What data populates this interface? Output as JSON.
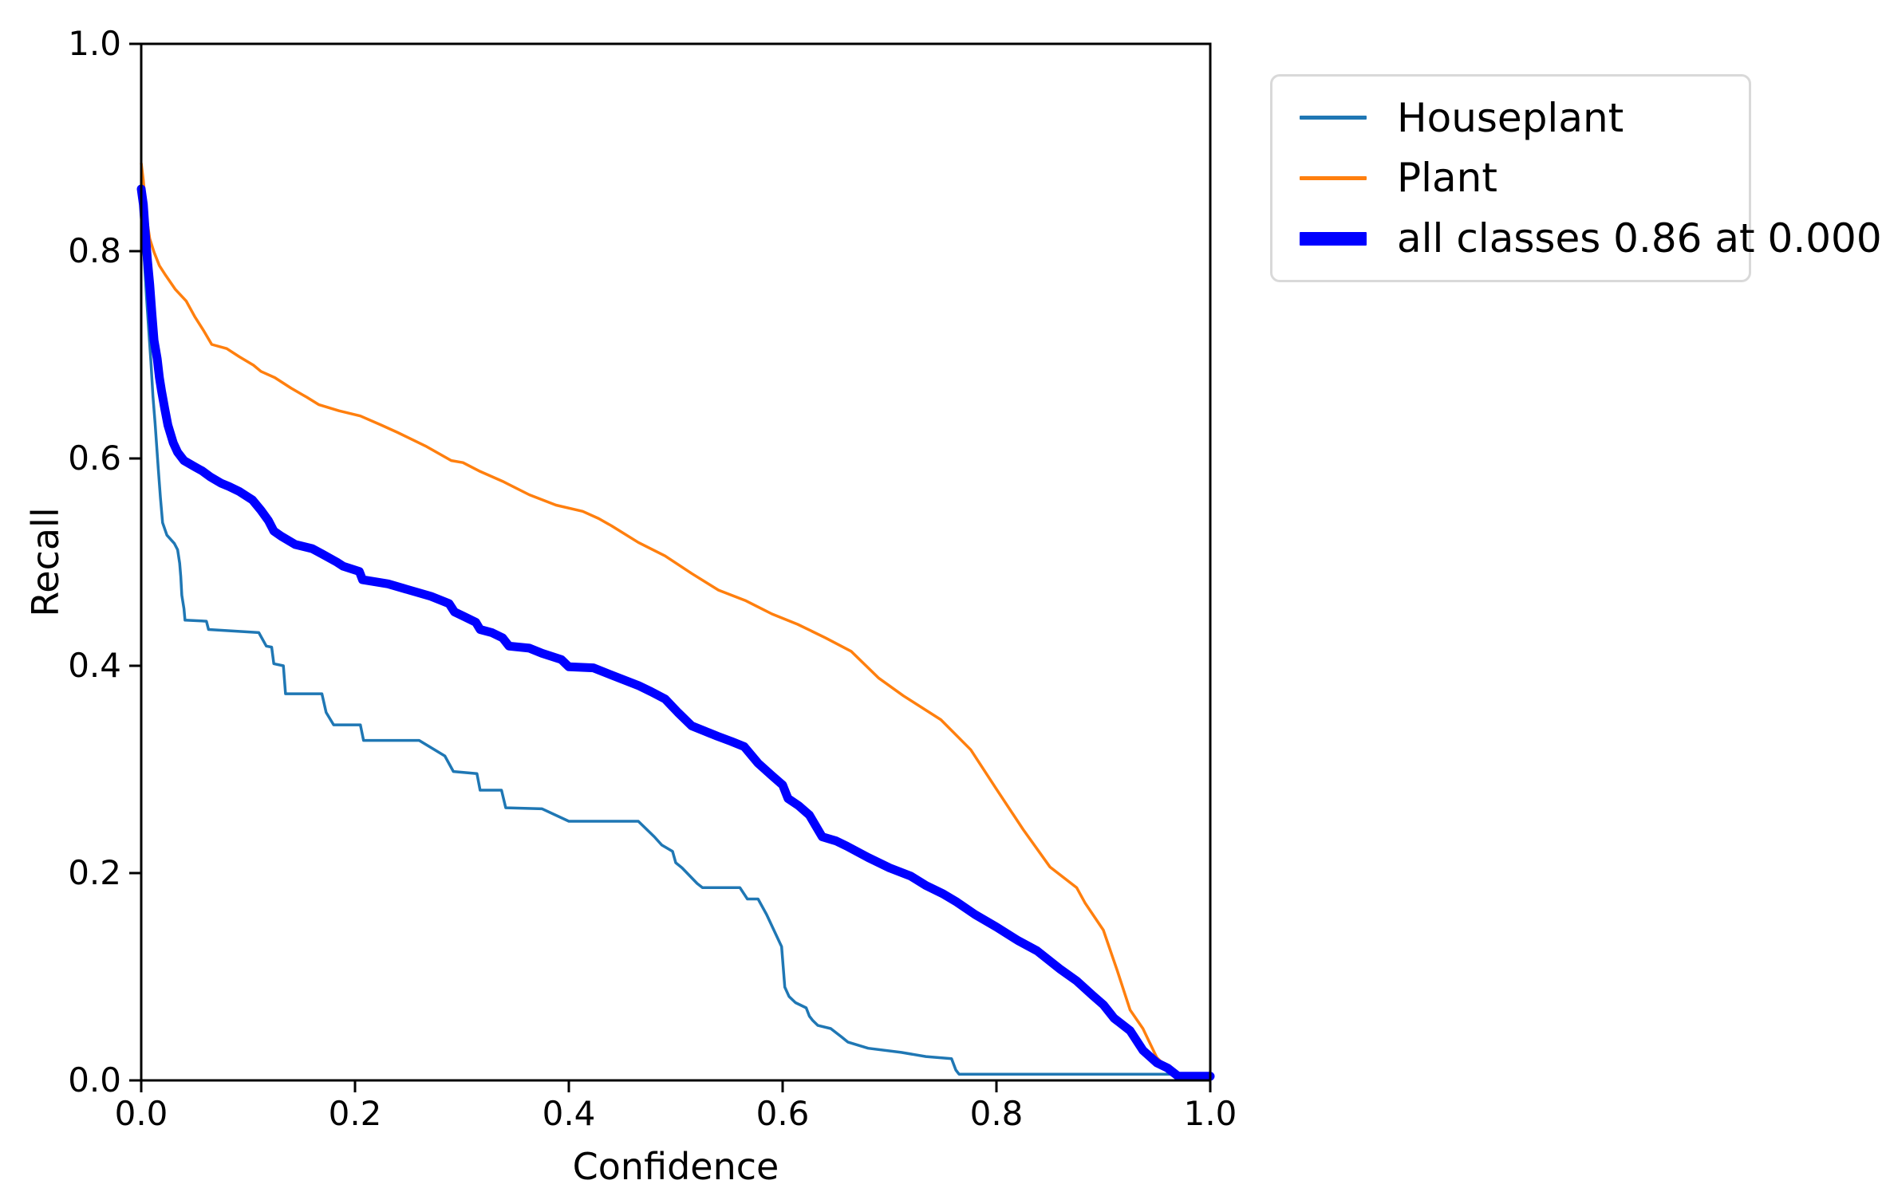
{
  "figure": {
    "background": "#ffffff",
    "plot_border_color": "#000000"
  },
  "chart_data": {
    "type": "line",
    "title": "",
    "xlabel": "Confidence",
    "ylabel": "Recall",
    "xlim": [
      0.0,
      1.0
    ],
    "ylim": [
      0.0,
      1.0
    ],
    "grid": false,
    "legend_position": "outside-top-right",
    "xticks": [
      "0.0",
      "0.2",
      "0.4",
      "0.6",
      "0.8",
      "1.0"
    ],
    "yticks": [
      "0.0",
      "0.2",
      "0.4",
      "0.6",
      "0.8",
      "1.0"
    ],
    "series": [
      {
        "name": "Houseplant",
        "color": "#1f77b4",
        "line_width": 3.5,
        "points": [
          [
            0.0,
            0.845
          ],
          [
            0.003,
            0.79
          ],
          [
            0.005,
            0.755
          ],
          [
            0.007,
            0.724
          ],
          [
            0.009,
            0.694
          ],
          [
            0.011,
            0.66
          ],
          [
            0.013,
            0.634
          ],
          [
            0.016,
            0.59
          ],
          [
            0.018,
            0.562
          ],
          [
            0.02,
            0.538
          ],
          [
            0.024,
            0.526
          ],
          [
            0.031,
            0.518
          ],
          [
            0.034,
            0.512
          ],
          [
            0.036,
            0.499
          ],
          [
            0.037,
            0.486
          ],
          [
            0.038,
            0.468
          ],
          [
            0.04,
            0.455
          ],
          [
            0.041,
            0.444
          ],
          [
            0.061,
            0.443
          ],
          [
            0.063,
            0.435
          ],
          [
            0.11,
            0.432
          ],
          [
            0.117,
            0.419
          ],
          [
            0.122,
            0.418
          ],
          [
            0.124,
            0.402
          ],
          [
            0.133,
            0.4
          ],
          [
            0.135,
            0.373
          ],
          [
            0.169,
            0.373
          ],
          [
            0.173,
            0.355
          ],
          [
            0.18,
            0.343
          ],
          [
            0.205,
            0.343
          ],
          [
            0.208,
            0.328
          ],
          [
            0.26,
            0.328
          ],
          [
            0.284,
            0.313
          ],
          [
            0.292,
            0.298
          ],
          [
            0.314,
            0.296
          ],
          [
            0.317,
            0.28
          ],
          [
            0.337,
            0.28
          ],
          [
            0.341,
            0.263
          ],
          [
            0.375,
            0.262
          ],
          [
            0.4,
            0.25
          ],
          [
            0.465,
            0.25
          ],
          [
            0.48,
            0.235
          ],
          [
            0.487,
            0.227
          ],
          [
            0.497,
            0.221
          ],
          [
            0.5,
            0.21
          ],
          [
            0.506,
            0.205
          ],
          [
            0.52,
            0.19
          ],
          [
            0.525,
            0.186
          ],
          [
            0.56,
            0.186
          ],
          [
            0.567,
            0.175
          ],
          [
            0.577,
            0.175
          ],
          [
            0.585,
            0.16
          ],
          [
            0.599,
            0.129
          ],
          [
            0.602,
            0.09
          ],
          [
            0.606,
            0.081
          ],
          [
            0.612,
            0.075
          ],
          [
            0.622,
            0.07
          ],
          [
            0.625,
            0.062
          ],
          [
            0.628,
            0.058
          ],
          [
            0.633,
            0.053
          ],
          [
            0.645,
            0.05
          ],
          [
            0.655,
            0.042
          ],
          [
            0.661,
            0.037
          ],
          [
            0.68,
            0.031
          ],
          [
            0.711,
            0.027
          ],
          [
            0.734,
            0.023
          ],
          [
            0.758,
            0.021
          ],
          [
            0.762,
            0.01
          ],
          [
            0.765,
            0.006
          ],
          [
            1.0,
            0.006
          ]
        ]
      },
      {
        "name": "Plant",
        "color": "#ff7f0e",
        "line_width": 3.5,
        "points": [
          [
            0.0,
            0.885
          ],
          [
            0.002,
            0.868
          ],
          [
            0.004,
            0.843
          ],
          [
            0.006,
            0.826
          ],
          [
            0.008,
            0.812
          ],
          [
            0.012,
            0.799
          ],
          [
            0.017,
            0.786
          ],
          [
            0.022,
            0.778
          ],
          [
            0.032,
            0.763
          ],
          [
            0.042,
            0.752
          ],
          [
            0.05,
            0.737
          ],
          [
            0.058,
            0.724
          ],
          [
            0.066,
            0.71
          ],
          [
            0.08,
            0.706
          ],
          [
            0.092,
            0.698
          ],
          [
            0.105,
            0.69
          ],
          [
            0.112,
            0.684
          ],
          [
            0.125,
            0.678
          ],
          [
            0.14,
            0.668
          ],
          [
            0.155,
            0.659
          ],
          [
            0.166,
            0.652
          ],
          [
            0.185,
            0.646
          ],
          [
            0.205,
            0.641
          ],
          [
            0.225,
            0.632
          ],
          [
            0.24,
            0.625
          ],
          [
            0.266,
            0.612
          ],
          [
            0.29,
            0.598
          ],
          [
            0.301,
            0.596
          ],
          [
            0.316,
            0.588
          ],
          [
            0.338,
            0.578
          ],
          [
            0.363,
            0.565
          ],
          [
            0.388,
            0.555
          ],
          [
            0.413,
            0.549
          ],
          [
            0.428,
            0.542
          ],
          [
            0.44,
            0.535
          ],
          [
            0.465,
            0.519
          ],
          [
            0.49,
            0.506
          ],
          [
            0.515,
            0.489
          ],
          [
            0.54,
            0.473
          ],
          [
            0.565,
            0.463
          ],
          [
            0.59,
            0.45
          ],
          [
            0.614,
            0.44
          ],
          [
            0.64,
            0.427
          ],
          [
            0.664,
            0.414
          ],
          [
            0.69,
            0.388
          ],
          [
            0.713,
            0.371
          ],
          [
            0.748,
            0.348
          ],
          [
            0.776,
            0.319
          ],
          [
            0.8,
            0.281
          ],
          [
            0.825,
            0.242
          ],
          [
            0.85,
            0.206
          ],
          [
            0.875,
            0.186
          ],
          [
            0.883,
            0.171
          ],
          [
            0.9,
            0.145
          ],
          [
            0.913,
            0.106
          ],
          [
            0.925,
            0.068
          ],
          [
            0.937,
            0.05
          ],
          [
            0.95,
            0.022
          ],
          [
            0.96,
            0.012
          ],
          [
            0.968,
            0.004
          ]
        ]
      },
      {
        "name": "all classes 0.86 at 0.000",
        "color": "#0000ff",
        "line_width": 11,
        "points": [
          [
            0.0,
            0.86
          ],
          [
            0.002,
            0.845
          ],
          [
            0.004,
            0.815
          ],
          [
            0.006,
            0.79
          ],
          [
            0.008,
            0.768
          ],
          [
            0.01,
            0.74
          ],
          [
            0.012,
            0.714
          ],
          [
            0.015,
            0.696
          ],
          [
            0.017,
            0.678
          ],
          [
            0.019,
            0.665
          ],
          [
            0.022,
            0.648
          ],
          [
            0.025,
            0.632
          ],
          [
            0.03,
            0.615
          ],
          [
            0.034,
            0.606
          ],
          [
            0.04,
            0.598
          ],
          [
            0.05,
            0.592
          ],
          [
            0.057,
            0.588
          ],
          [
            0.065,
            0.582
          ],
          [
            0.075,
            0.576
          ],
          [
            0.082,
            0.573
          ],
          [
            0.092,
            0.568
          ],
          [
            0.104,
            0.56
          ],
          [
            0.112,
            0.55
          ],
          [
            0.119,
            0.54
          ],
          [
            0.124,
            0.53
          ],
          [
            0.131,
            0.525
          ],
          [
            0.144,
            0.517
          ],
          [
            0.16,
            0.513
          ],
          [
            0.169,
            0.508
          ],
          [
            0.183,
            0.5
          ],
          [
            0.189,
            0.496
          ],
          [
            0.204,
            0.491
          ],
          [
            0.207,
            0.483
          ],
          [
            0.231,
            0.479
          ],
          [
            0.251,
            0.473
          ],
          [
            0.271,
            0.467
          ],
          [
            0.288,
            0.46
          ],
          [
            0.293,
            0.452
          ],
          [
            0.301,
            0.448
          ],
          [
            0.313,
            0.442
          ],
          [
            0.317,
            0.435
          ],
          [
            0.328,
            0.432
          ],
          [
            0.338,
            0.427
          ],
          [
            0.344,
            0.419
          ],
          [
            0.363,
            0.417
          ],
          [
            0.375,
            0.412
          ],
          [
            0.393,
            0.406
          ],
          [
            0.4,
            0.399
          ],
          [
            0.423,
            0.398
          ],
          [
            0.44,
            0.391
          ],
          [
            0.465,
            0.381
          ],
          [
            0.477,
            0.375
          ],
          [
            0.49,
            0.368
          ],
          [
            0.502,
            0.355
          ],
          [
            0.515,
            0.342
          ],
          [
            0.527,
            0.337
          ],
          [
            0.539,
            0.332
          ],
          [
            0.552,
            0.327
          ],
          [
            0.564,
            0.322
          ],
          [
            0.577,
            0.306
          ],
          [
            0.59,
            0.294
          ],
          [
            0.6,
            0.285
          ],
          [
            0.605,
            0.272
          ],
          [
            0.615,
            0.265
          ],
          [
            0.625,
            0.256
          ],
          [
            0.637,
            0.235
          ],
          [
            0.65,
            0.231
          ],
          [
            0.66,
            0.226
          ],
          [
            0.68,
            0.215
          ],
          [
            0.7,
            0.205
          ],
          [
            0.72,
            0.197
          ],
          [
            0.734,
            0.188
          ],
          [
            0.75,
            0.18
          ],
          [
            0.763,
            0.172
          ],
          [
            0.78,
            0.16
          ],
          [
            0.8,
            0.148
          ],
          [
            0.82,
            0.135
          ],
          [
            0.838,
            0.125
          ],
          [
            0.86,
            0.107
          ],
          [
            0.875,
            0.096
          ],
          [
            0.89,
            0.082
          ],
          [
            0.9,
            0.073
          ],
          [
            0.91,
            0.06
          ],
          [
            0.925,
            0.048
          ],
          [
            0.937,
            0.029
          ],
          [
            0.95,
            0.017
          ],
          [
            0.96,
            0.012
          ],
          [
            0.965,
            0.008
          ],
          [
            0.97,
            0.004
          ],
          [
            1.0,
            0.004
          ]
        ]
      }
    ]
  },
  "legend": {
    "items": [
      {
        "label": "Houseplant",
        "color": "#1f77b4",
        "swatch_thickness": 5
      },
      {
        "label": "Plant",
        "color": "#ff7f0e",
        "swatch_thickness": 5
      },
      {
        "label": "all classes 0.86 at 0.000",
        "color": "#0000ff",
        "swatch_thickness": 17
      }
    ]
  }
}
